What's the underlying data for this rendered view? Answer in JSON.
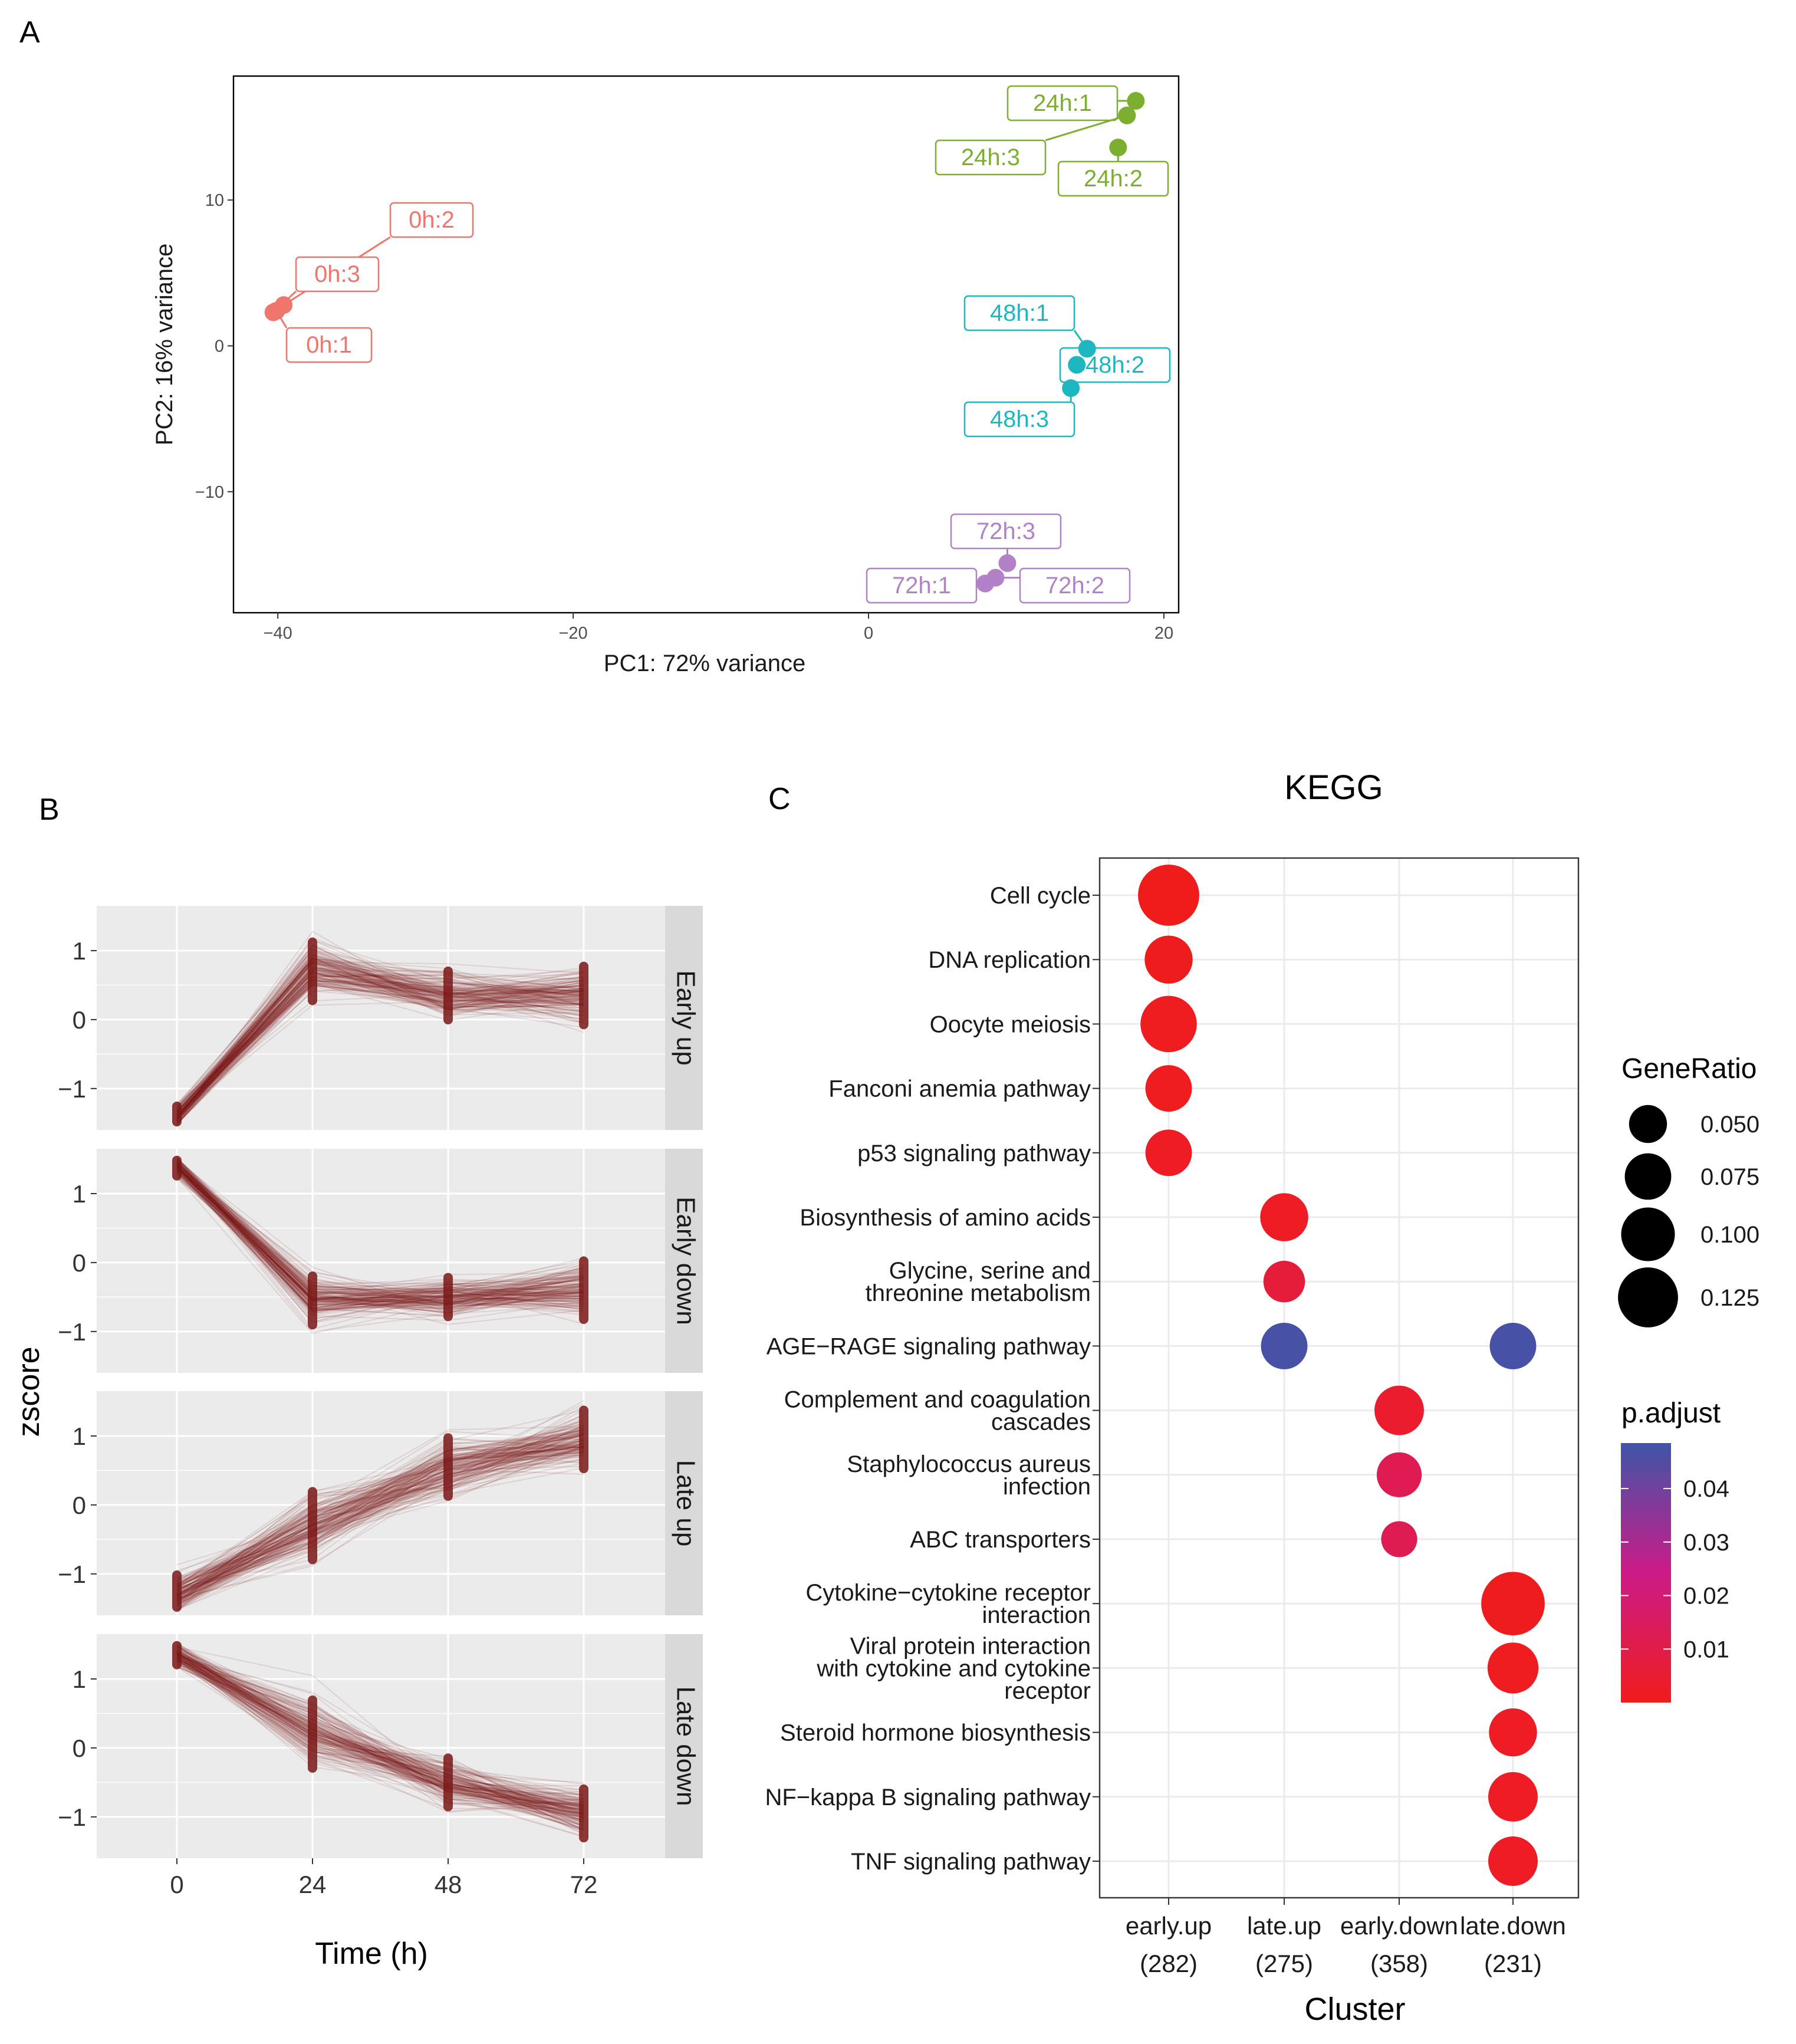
{
  "panels": {
    "a": "A",
    "b": "B",
    "c": "C"
  },
  "colors": {
    "0h": "#F0766D",
    "24h": "#7CAE2F",
    "48h": "#1EB7C0",
    "72h": "#B281C8",
    "trace": "#7A1616",
    "facet_bg": "#EBEBEB",
    "strip_bg": "#D9D9D9",
    "grid": "#FFFFFF",
    "kegg_grid": "#EBEBEB",
    "padj_low": "#F01C1C",
    "padj_mid": "#CC1B88",
    "padj_high": "#3E55A8"
  },
  "chart_data": [
    {
      "id": "pca",
      "type": "scatter",
      "xlabel": "PC1: 72% variance",
      "ylabel": "PC2: 16% variance",
      "xlim": [
        -43,
        21
      ],
      "ylim": [
        -18.3,
        18.5
      ],
      "xticks": [
        -40,
        -20,
        0,
        20
      ],
      "xtick_labels": [
        "−40",
        "−20",
        "0",
        "20"
      ],
      "yticks": [
        -10,
        0,
        10
      ],
      "ytick_labels": [
        "−10",
        "0",
        "10"
      ],
      "points": [
        {
          "label": "0h:1",
          "group": "0h",
          "x": -40.1,
          "y": 2.4
        },
        {
          "label": "0h:2",
          "group": "0h",
          "x": -39.6,
          "y": 2.8
        },
        {
          "label": "0h:3",
          "group": "0h",
          "x": -40.3,
          "y": 2.3
        },
        {
          "label": "24h:1",
          "group": "24h",
          "x": 18.1,
          "y": 16.8
        },
        {
          "label": "24h:2",
          "group": "24h",
          "x": 16.9,
          "y": 13.6
        },
        {
          "label": "24h:3",
          "group": "24h",
          "x": 17.5,
          "y": 15.8
        },
        {
          "label": "48h:1",
          "group": "48h",
          "x": 14.8,
          "y": -0.2
        },
        {
          "label": "48h:2",
          "group": "48h",
          "x": 14.1,
          "y": -1.3
        },
        {
          "label": "48h:3",
          "group": "48h",
          "x": 13.7,
          "y": -2.9
        },
        {
          "label": "72h:1",
          "group": "72h",
          "x": 7.9,
          "y": -16.3
        },
        {
          "label": "72h:2",
          "group": "72h",
          "x": 8.6,
          "y": -15.9
        },
        {
          "label": "72h:3",
          "group": "72h",
          "x": 9.4,
          "y": -14.9
        }
      ]
    },
    {
      "id": "zscore",
      "type": "line",
      "xlabel": "Time (h)",
      "ylabel": "zscore",
      "x": [
        0,
        24,
        48,
        72
      ],
      "xtick_labels": [
        "0",
        "24",
        "48",
        "72"
      ],
      "ylim": [
        -1.6,
        1.65
      ],
      "yticks": [
        -1,
        0,
        1
      ],
      "ytick_labels": [
        "−1",
        "0",
        "1"
      ],
      "facets": [
        {
          "name": "Early up",
          "mean": [
            -1.4,
            0.7,
            0.35,
            0.35
          ],
          "spread": [
            0.15,
            0.35,
            0.3,
            0.35
          ]
        },
        {
          "name": "Early down",
          "mean": [
            1.4,
            -0.55,
            -0.5,
            -0.4
          ],
          "spread": [
            0.15,
            0.3,
            0.25,
            0.35
          ]
        },
        {
          "name": "Late up",
          "mean": [
            -1.3,
            -0.3,
            0.55,
            0.95
          ],
          "spread": [
            0.25,
            0.4,
            0.35,
            0.35
          ]
        },
        {
          "name": "Late down",
          "mean": [
            1.35,
            0.2,
            -0.5,
            -0.95
          ],
          "spread": [
            0.15,
            0.4,
            0.3,
            0.3
          ]
        }
      ]
    },
    {
      "id": "kegg",
      "type": "scatter",
      "title": "KEGG",
      "xlabel": "Cluster",
      "clusters": [
        {
          "name": "early.up",
          "count": "(282)"
        },
        {
          "name": "late.up",
          "count": "(275)"
        },
        {
          "name": "early.down",
          "count": "(358)"
        },
        {
          "name": "late.down",
          "count": "(231)"
        }
      ],
      "pathways": [
        [
          "Cell cycle"
        ],
        [
          "DNA replication"
        ],
        [
          "Oocyte meiosis"
        ],
        [
          "Fanconi anemia pathway"
        ],
        [
          "p53 signaling pathway"
        ],
        [
          "Biosynthesis of amino acids"
        ],
        [
          "Glycine, serine and",
          "threonine metabolism"
        ],
        [
          "AGE−RAGE signaling pathway"
        ],
        [
          "Complement and coagulation",
          "cascades"
        ],
        [
          "Staphylococcus aureus",
          "infection"
        ],
        [
          "ABC transporters"
        ],
        [
          "Cytokine−cytokine receptor",
          "interaction"
        ],
        [
          "Viral protein interaction",
          "with cytokine and cytokine",
          "receptor"
        ],
        [
          "Steroid hormone biosynthesis"
        ],
        [
          "NF−kappa B signaling pathway"
        ],
        [
          "TNF signaling pathway"
        ]
      ],
      "dots": [
        {
          "pathway": 0,
          "cluster": 0,
          "gene_ratio": 0.13,
          "p_adjust": 0.0001
        },
        {
          "pathway": 1,
          "cluster": 0,
          "gene_ratio": 0.08,
          "p_adjust": 0.0005
        },
        {
          "pathway": 2,
          "cluster": 0,
          "gene_ratio": 0.11,
          "p_adjust": 0.001
        },
        {
          "pathway": 3,
          "cluster": 0,
          "gene_ratio": 0.075,
          "p_adjust": 0.001
        },
        {
          "pathway": 4,
          "cluster": 0,
          "gene_ratio": 0.075,
          "p_adjust": 0.002
        },
        {
          "pathway": 5,
          "cluster": 1,
          "gene_ratio": 0.08,
          "p_adjust": 0.002
        },
        {
          "pathway": 6,
          "cluster": 1,
          "gene_ratio": 0.06,
          "p_adjust": 0.007
        },
        {
          "pathway": 7,
          "cluster": 1,
          "gene_ratio": 0.075,
          "p_adjust": 0.047
        },
        {
          "pathway": 7,
          "cluster": 3,
          "gene_ratio": 0.075,
          "p_adjust": 0.047
        },
        {
          "pathway": 8,
          "cluster": 2,
          "gene_ratio": 0.085,
          "p_adjust": 0.004
        },
        {
          "pathway": 9,
          "cluster": 2,
          "gene_ratio": 0.07,
          "p_adjust": 0.012
        },
        {
          "pathway": 10,
          "cluster": 2,
          "gene_ratio": 0.045,
          "p_adjust": 0.012
        },
        {
          "pathway": 11,
          "cluster": 3,
          "gene_ratio": 0.14,
          "p_adjust": 0.0005
        },
        {
          "pathway": 12,
          "cluster": 3,
          "gene_ratio": 0.09,
          "p_adjust": 0.001
        },
        {
          "pathway": 13,
          "cluster": 3,
          "gene_ratio": 0.08,
          "p_adjust": 0.002
        },
        {
          "pathway": 14,
          "cluster": 3,
          "gene_ratio": 0.085,
          "p_adjust": 0.002
        },
        {
          "pathway": 15,
          "cluster": 3,
          "gene_ratio": 0.085,
          "p_adjust": 0.002
        }
      ],
      "legend_size": {
        "title": "GeneRatio",
        "values": [
          0.05,
          0.075,
          0.1,
          0.125
        ],
        "labels": [
          "0.050",
          "0.075",
          "0.100",
          "0.125"
        ]
      },
      "legend_color": {
        "title": "p.adjust",
        "min": 0,
        "max": 0.0485,
        "values": [
          0.01,
          0.02,
          0.03,
          0.04
        ],
        "labels": [
          "0.01",
          "0.02",
          "0.03",
          "0.04"
        ]
      }
    }
  ]
}
